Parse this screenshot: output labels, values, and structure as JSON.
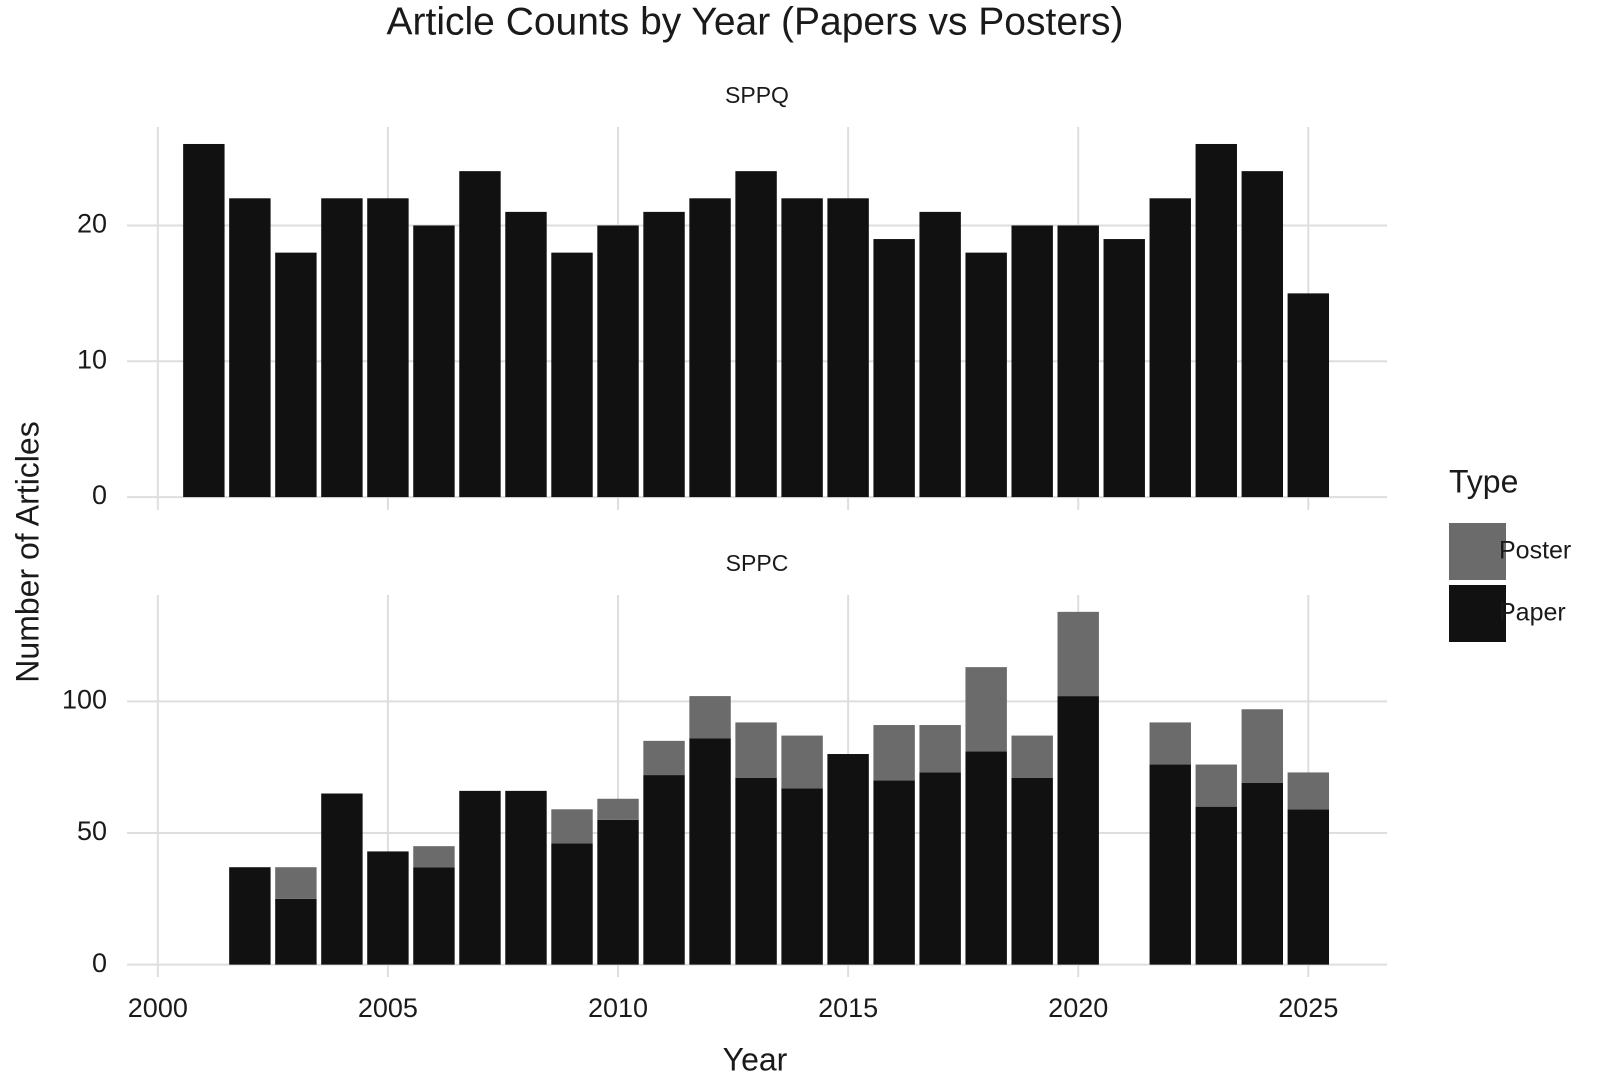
{
  "title": "Article Counts by Year (Papers vs Posters)",
  "x_label": "Year",
  "y_label": "Number of Articles",
  "legend_title": "Type",
  "chart_data": [
    {
      "type": "bar",
      "stacked": true,
      "subtitle": "SPPQ",
      "x": [
        2001,
        2002,
        2003,
        2004,
        2005,
        2006,
        2007,
        2008,
        2009,
        2010,
        2011,
        2012,
        2013,
        2014,
        2015,
        2016,
        2017,
        2018,
        2019,
        2020,
        2021,
        2022,
        2023,
        2024,
        2025
      ],
      "series": [
        {
          "name": "Paper",
          "color": "#111111",
          "values": [
            26,
            22,
            18,
            22,
            22,
            20,
            24,
            21,
            18,
            20,
            21,
            22,
            24,
            22,
            22,
            19,
            21,
            18,
            20,
            20,
            19,
            22,
            26,
            24,
            15
          ]
        }
      ],
      "xlim": [
        1999.33,
        2026.71
      ],
      "xticks": [
        2000,
        2005,
        2010,
        2015,
        2020,
        2025
      ],
      "ylim": [
        -0.95,
        27.25
      ],
      "yticks": [
        0,
        10,
        20
      ],
      "grid": true
    },
    {
      "type": "bar",
      "stacked": true,
      "subtitle": "SPPC",
      "x": [
        2002,
        2003,
        2004,
        2005,
        2006,
        2007,
        2008,
        2009,
        2010,
        2011,
        2012,
        2013,
        2014,
        2015,
        2016,
        2017,
        2018,
        2019,
        2020,
        2021,
        2022,
        2023,
        2024,
        2025
      ],
      "series": [
        {
          "name": "Paper",
          "color": "#111111",
          "values": [
            37,
            25,
            65,
            43,
            37,
            66,
            66,
            46,
            55,
            72,
            86,
            71,
            67,
            80,
            70,
            73,
            81,
            71,
            102,
            null,
            76,
            60,
            69,
            59
          ]
        },
        {
          "name": "Poster",
          "color": "#6b6b6b",
          "values": [
            0,
            12,
            0,
            0,
            8,
            0,
            0,
            13,
            8,
            13,
            16,
            21,
            20,
            0,
            21,
            18,
            32,
            16,
            32,
            null,
            16,
            16,
            28,
            14
          ]
        }
      ],
      "xlim": [
        1999.33,
        2026.71
      ],
      "xticks": [
        2000,
        2005,
        2010,
        2015,
        2020,
        2025
      ],
      "ylim": [
        -4.7,
        140.4
      ],
      "yticks": [
        0,
        50,
        100
      ],
      "grid": true,
      "legend": "right"
    }
  ]
}
